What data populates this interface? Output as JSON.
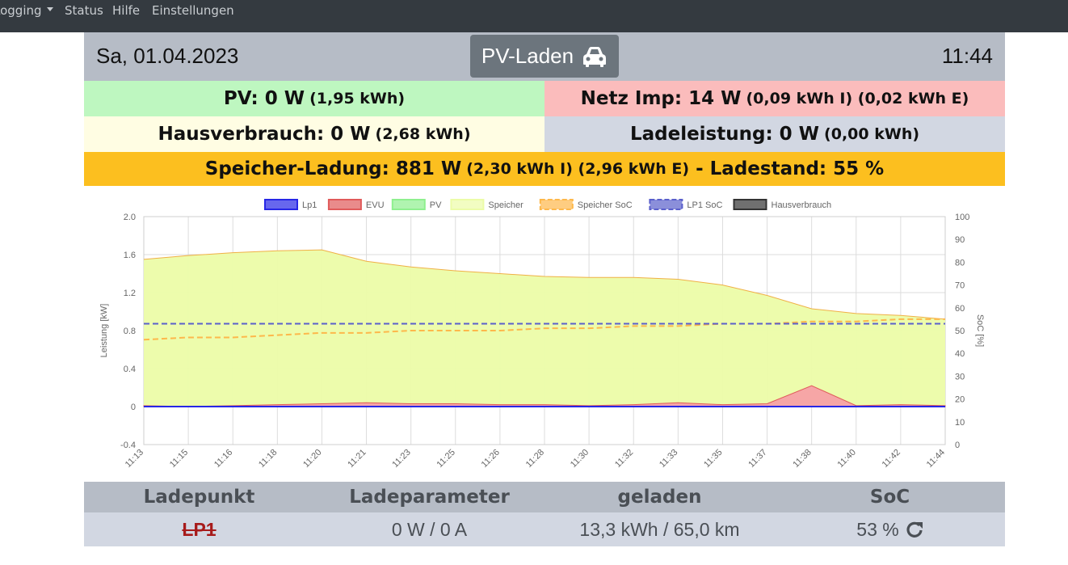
{
  "nav": {
    "items": [
      {
        "label": "Logging",
        "dropdown": true
      },
      {
        "label": "Status",
        "dropdown": false
      },
      {
        "label": "Hilfe",
        "dropdown": false
      },
      {
        "label": "Einstellungen",
        "dropdown": false
      }
    ]
  },
  "header": {
    "date": "Sa, 01.04.2023",
    "mode_label": "PV-Laden",
    "mode_icon": "car-icon",
    "time": "11:44"
  },
  "summary": {
    "pv_main": "PV: 0 W",
    "pv_sub": "(1,95 kWh)",
    "netz_main": "Netz Imp: 14 W",
    "netz_sub": "(0,09 kWh I) (0,02 kWh E)",
    "haus_main": "Hausverbrauch: 0 W",
    "haus_sub": "(2,68 kWh)",
    "lade_main": "Ladeleistung: 0 W",
    "lade_sub": "(0,00 kWh)",
    "speicher_main": "Speicher-Ladung: 881 W",
    "speicher_sub": "(2,30 kWh I) (2,96 kWh E)",
    "speicher_tail": "- Ladestand: 55 %"
  },
  "colors": {
    "pv": "#bef7c0",
    "netz": "#fbbcbc",
    "haus": "#fffde3",
    "lade": "#d2d7e2",
    "speicher": "#fcbf1f",
    "header": "#b6bcc6"
  },
  "chart_data": {
    "type": "line",
    "xlabel": "",
    "ylabel": "Leistung [kW]",
    "y2label": "SoC [%]",
    "ylim": [
      -0.4,
      2.0
    ],
    "y2lim": [
      0,
      100
    ],
    "yticks": [
      "2.0",
      "1.6",
      "1.2",
      "0.8",
      "0.4",
      "0",
      "-0.4"
    ],
    "y2ticks": [
      "100",
      "90",
      "80",
      "70",
      "60",
      "50",
      "40",
      "30",
      "20",
      "10",
      "0"
    ],
    "x": [
      "11:13",
      "11:15",
      "11:16",
      "11:18",
      "11:20",
      "11:21",
      "11:23",
      "11:25",
      "11:26",
      "11:28",
      "11:30",
      "11:32",
      "11:33",
      "11:35",
      "11:37",
      "11:38",
      "11:40",
      "11:42",
      "11:44"
    ],
    "legend_position": "top",
    "series": [
      {
        "name": "Lp1",
        "color": "#2727e6",
        "values": [
          0,
          0,
          0,
          0,
          0,
          0,
          0,
          0,
          0,
          0,
          0,
          0,
          0,
          0,
          0,
          0,
          0,
          0,
          0
        ]
      },
      {
        "name": "EVU",
        "color": "#e05a5a",
        "values": [
          0.01,
          0.0,
          0.01,
          0.02,
          0.03,
          0.04,
          0.03,
          0.03,
          0.02,
          0.02,
          0.01,
          0.02,
          0.04,
          0.02,
          0.03,
          0.22,
          0.01,
          0.02,
          0.01
        ]
      },
      {
        "name": "PV",
        "color": "#8ff08f",
        "values": [
          0,
          0,
          0,
          0,
          0,
          0,
          0,
          0,
          0,
          0,
          0,
          0,
          0,
          0,
          0,
          0,
          0,
          0,
          0
        ]
      },
      {
        "name": "Speicher",
        "color": "#ecfca8",
        "values": [
          1.55,
          1.59,
          1.62,
          1.64,
          1.65,
          1.53,
          1.47,
          1.43,
          1.4,
          1.37,
          1.36,
          1.36,
          1.34,
          1.28,
          1.17,
          1.03,
          0.98,
          0.96,
          0.92
        ]
      },
      {
        "name": "Speicher SoC",
        "color": "#fdb84b",
        "dashed": true,
        "axis": "right",
        "values": [
          46,
          47,
          47,
          48,
          49,
          49,
          50,
          50,
          50,
          51,
          51,
          52,
          52,
          53,
          53,
          54,
          54,
          55,
          55
        ]
      },
      {
        "name": "LP1 SoC",
        "color": "#5a5fcb",
        "dashed": true,
        "axis": "right",
        "values": [
          53,
          53,
          53,
          53,
          53,
          53,
          53,
          53,
          53,
          53,
          53,
          53,
          53,
          53,
          53,
          53,
          53,
          53,
          53
        ]
      },
      {
        "name": "Hausverbrauch",
        "color": "#333333",
        "values": [
          0,
          0,
          0,
          0,
          0,
          0,
          0,
          0,
          0,
          0,
          0,
          0,
          0,
          0,
          0,
          0,
          0,
          0,
          0
        ]
      }
    ]
  },
  "lp_table": {
    "headers": [
      "Ladepunkt",
      "Ladeparameter",
      "geladen",
      "SoC"
    ],
    "row": {
      "name": "LP1",
      "params": "0 W / 0 A",
      "charged": "13,3 kWh / 65,0 km",
      "soc": "53 %"
    }
  }
}
